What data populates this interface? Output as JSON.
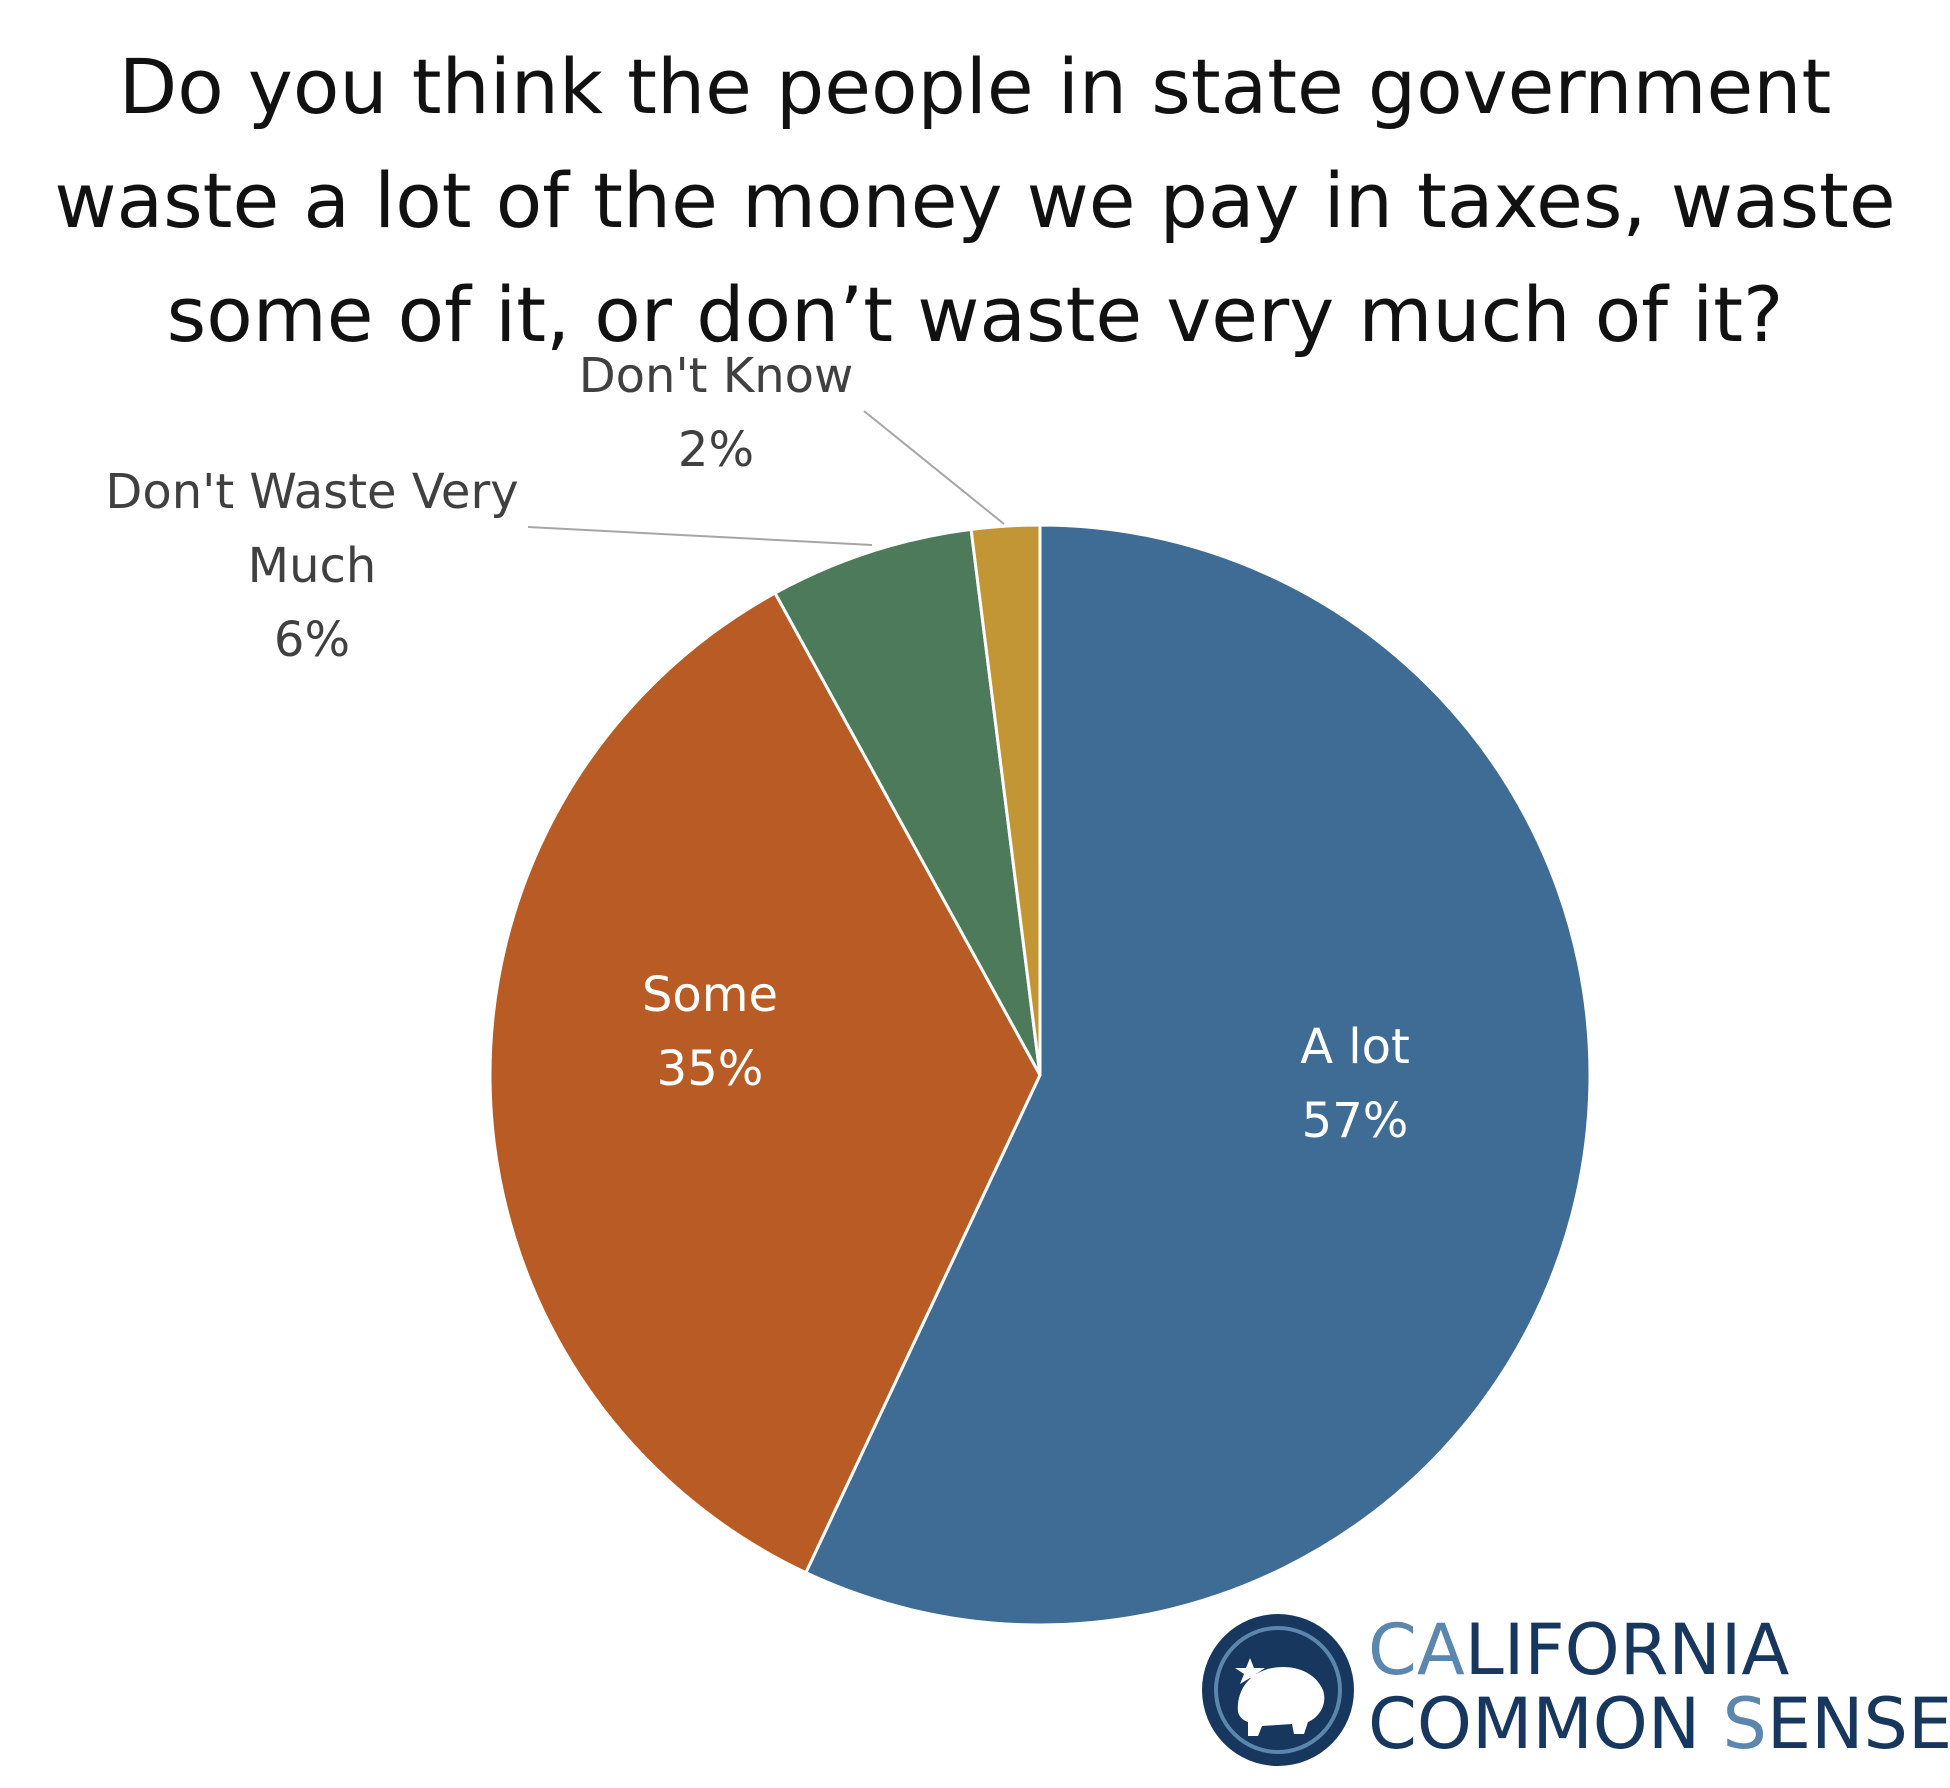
{
  "title_lines": [
    "Do you think the people in state government",
    "waste a lot of the money we pay in taxes, waste",
    "some of it, or don’t waste very much of it?"
  ],
  "colors": {
    "a_lot": "#3f6c94",
    "some": "#b95b24",
    "dont_waste": "#4e7a5c",
    "dont_know": "#c29634",
    "label_dark": "#404040",
    "label_light": "#ffffff",
    "leader": "#a6a6a6",
    "logo_navy": "#17375e",
    "logo_light": "#5b86ad"
  },
  "chart_data": {
    "type": "pie",
    "title": "Do you think the people in state government waste a lot of the money we pay in taxes, waste some of it, or don’t waste very much of it?",
    "start": "12 o'clock",
    "direction": "clockwise",
    "slices": [
      {
        "key": "a_lot",
        "name_lines": [
          "A lot"
        ],
        "pct_label": "57%",
        "value": 57
      },
      {
        "key": "some",
        "name_lines": [
          "Some"
        ],
        "pct_label": "35%",
        "value": 35
      },
      {
        "key": "dont_waste",
        "name_lines": [
          "Don't Waste Very",
          "Much"
        ],
        "pct_label": "6%",
        "value": 6
      },
      {
        "key": "dont_know",
        "name_lines": [
          "Don't Know"
        ],
        "pct_label": "2%",
        "value": 2
      }
    ]
  },
  "logo": {
    "line1": {
      "accent": "CA",
      "rest": "LIFORNIA"
    },
    "line2": {
      "part1": "COMMON ",
      "accent": "S",
      "rest": "ENSE"
    }
  }
}
